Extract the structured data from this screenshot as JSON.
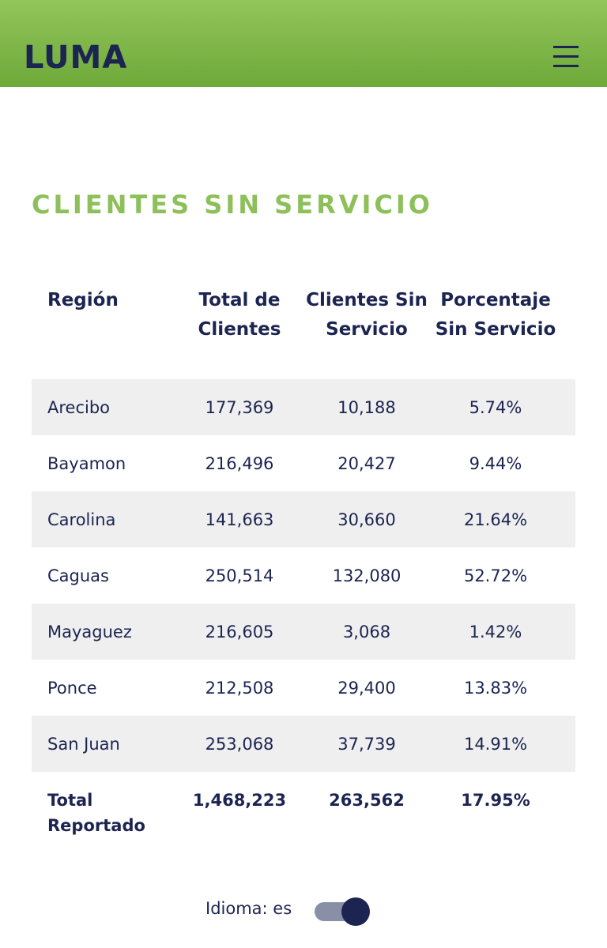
{
  "header": {
    "logo": "LUMA"
  },
  "title": "CLIENTES SIN SERVICIO",
  "table": {
    "header": [
      "Región",
      "Total de Clientes",
      "Clientes Sin Servicio",
      "Porcentaje Sin Servicio"
    ],
    "rows": [
      [
        "Arecibo",
        "177,369",
        "10,188",
        "5.74%"
      ],
      [
        "Bayamon",
        "216,496",
        "20,427",
        "9.44%"
      ],
      [
        "Carolina",
        "141,663",
        "30,660",
        "21.64%"
      ],
      [
        "Caguas",
        "250,514",
        "132,080",
        "52.72%"
      ],
      [
        "Mayaguez",
        "216,605",
        "3,068",
        "1.42%"
      ],
      [
        "Ponce",
        "212,508",
        "29,400",
        "13.83%"
      ],
      [
        "San Juan",
        "253,068",
        "37,739",
        "14.91%"
      ]
    ],
    "total": [
      "Total Reportado",
      "1,468,223",
      "263,562",
      "17.95%"
    ]
  },
  "footer": {
    "language_label": "Idioma: es"
  }
}
